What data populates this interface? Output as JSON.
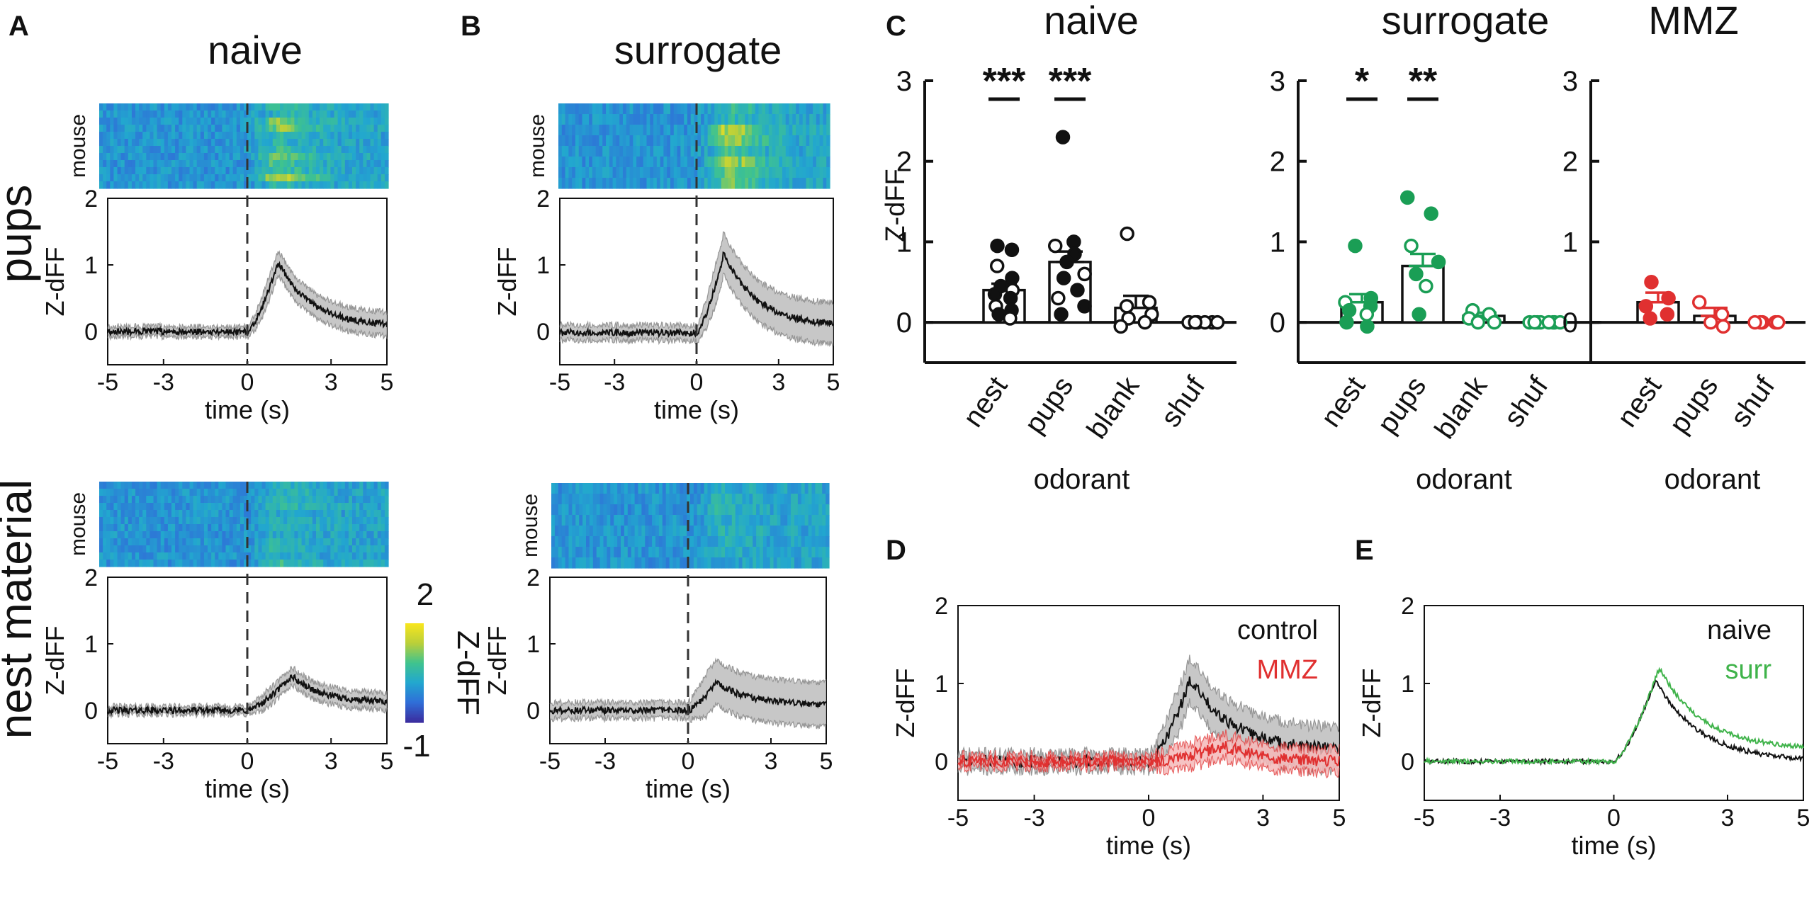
{
  "panel_labels": [
    "A",
    "B",
    "C",
    "D",
    "E"
  ],
  "row_labels": [
    "pups",
    "nest material"
  ],
  "heatmap_ylabel": "mouse",
  "colorbar": {
    "label": "Z-dFF",
    "max_label": "2",
    "min_label": "-1",
    "colors": [
      "#3b2ea0",
      "#2f6fd8",
      "#22a7cf",
      "#3fc38e",
      "#b9cf3a",
      "#f7e51e"
    ]
  },
  "colors": {
    "naive": "#111111",
    "surrogate": "#1a9e55",
    "mmz": "#e03030",
    "surr_line": "#3fb34a",
    "shade_gray": "#bdbdbd",
    "shade_red": "#f4b8b8"
  },
  "chart_data": [
    {
      "panel": "A",
      "type": "line",
      "title": "naive",
      "row": "pups",
      "xlabel": "time (s)",
      "ylabel": "Z-dFF",
      "xlim": [
        -5,
        5
      ],
      "ylim": [
        -0.5,
        2
      ],
      "xticks": [
        "-5",
        "-3",
        "0",
        "3",
        "5"
      ],
      "yticks": [
        "0",
        "1",
        "2"
      ],
      "peak": 1.05,
      "peak_time": 1.1,
      "baseline": 0.0,
      "end_value": 0.08,
      "sem": 0.15,
      "heatmap_rows": 12
    },
    {
      "panel": "B",
      "type": "line",
      "title": "surrogate",
      "row": "pups",
      "xlabel": "time (s)",
      "ylabel": "Z-dFF",
      "xlim": [
        -5,
        5
      ],
      "ylim": [
        -0.5,
        2
      ],
      "xticks": [
        "-5",
        "-3",
        "0",
        "3",
        "5"
      ],
      "yticks": [
        "0",
        "1",
        "2"
      ],
      "peak": 1.2,
      "peak_time": 1.0,
      "baseline": -0.02,
      "end_value": 0.1,
      "sem": 0.28,
      "heatmap_rows": 8
    },
    {
      "panel": "A",
      "type": "line",
      "title": "",
      "row": "nest material",
      "xlabel": "time (s)",
      "ylabel": "Z-dFF",
      "xlim": [
        -5,
        5
      ],
      "ylim": [
        -0.5,
        2
      ],
      "xticks": [
        "-5",
        "-3",
        "0",
        "3",
        "5"
      ],
      "yticks": [
        "0",
        "1",
        "2"
      ],
      "peak": 0.52,
      "peak_time": 1.6,
      "baseline": 0.0,
      "end_value": 0.12,
      "sem": 0.1,
      "heatmap_rows": 12
    },
    {
      "panel": "B",
      "type": "line",
      "title": "",
      "row": "nest material",
      "xlabel": "time (s)",
      "ylabel": "Z-dFF",
      "xlim": [
        -5,
        5
      ],
      "ylim": [
        -0.5,
        2
      ],
      "xticks": [
        "-5",
        "-3",
        "0",
        "3",
        "5"
      ],
      "yticks": [
        "0",
        "1",
        "2"
      ],
      "peak": 0.42,
      "peak_time": 1.0,
      "baseline": 0.0,
      "end_value": 0.08,
      "sem": 0.3,
      "heatmap_rows": 8
    },
    {
      "panel": "C",
      "type": "bar",
      "title": "naive",
      "xlabel": "odorant",
      "ylabel": "Z-dFF",
      "ylim": [
        -0.5,
        3
      ],
      "yticks": [
        "0",
        "1",
        "2",
        "3"
      ],
      "color_key": "naive",
      "categories": [
        "nest",
        "pups",
        "blank",
        "shuf"
      ],
      "values": [
        0.4,
        0.75,
        0.18,
        0.0
      ],
      "sem": [
        0.08,
        0.13,
        0.15,
        0.01
      ],
      "open_markers": [
        false,
        false,
        true,
        true
      ],
      "points": [
        [
          0.95,
          0.9,
          0.7,
          0.55,
          0.45,
          0.4,
          0.35,
          0.3,
          0.2,
          0.15,
          0.1,
          0.05
        ],
        [
          2.3,
          1.0,
          0.95,
          0.85,
          0.75,
          0.6,
          0.55,
          0.4,
          0.3,
          0.2,
          0.1
        ],
        [
          1.1,
          0.25,
          0.2,
          0.1,
          0.05,
          0.0,
          -0.05
        ],
        [
          0,
          0,
          0,
          0,
          0,
          0,
          0
        ]
      ],
      "significance": [
        {
          "label": "***",
          "index": 0
        },
        {
          "label": "***",
          "index": 1
        }
      ]
    },
    {
      "panel": "C",
      "type": "bar",
      "title": "surrogate",
      "xlabel": "odorant",
      "ylabel": "",
      "ylim": [
        -0.5,
        3
      ],
      "yticks": [
        "0",
        "1",
        "2",
        "3"
      ],
      "color_key": "surrogate",
      "categories": [
        "nest",
        "pups",
        "blank",
        "shuf"
      ],
      "values": [
        0.25,
        0.7,
        0.08,
        0.0
      ],
      "sem": [
        0.1,
        0.15,
        0.04,
        0.01
      ],
      "open_markers": [
        false,
        false,
        true,
        true
      ],
      "points": [
        [
          0.95,
          0.3,
          0.25,
          0.2,
          0.15,
          0.1,
          0.0,
          -0.05
        ],
        [
          1.55,
          1.35,
          0.95,
          0.75,
          0.6,
          0.45,
          0.1
        ],
        [
          0.15,
          0.1,
          0.05,
          0.0,
          0.0
        ],
        [
          0,
          0,
          0,
          0,
          0,
          0,
          0,
          0
        ]
      ],
      "significance": [
        {
          "label": "*",
          "index": 0
        },
        {
          "label": "**",
          "index": 1
        }
      ]
    },
    {
      "panel": "C",
      "type": "bar",
      "title": "MMZ",
      "xlabel": "odorant",
      "ylabel": "",
      "ylim": [
        -0.5,
        3
      ],
      "yticks": [
        "0",
        "1",
        "2",
        "3"
      ],
      "color_key": "mmz",
      "categories": [
        "nest",
        "pups",
        "shuf"
      ],
      "values": [
        0.25,
        0.08,
        0.0
      ],
      "sem": [
        0.12,
        0.1,
        0.01
      ],
      "open_markers": [
        false,
        true,
        true
      ],
      "points": [
        [
          0.5,
          0.3,
          0.2,
          0.1,
          0.05
        ],
        [
          0.25,
          0.1,
          0.0,
          -0.05
        ],
        [
          0,
          0,
          0,
          0,
          0
        ]
      ],
      "significance": []
    },
    {
      "panel": "D",
      "type": "line",
      "xlabel": "time (s)",
      "ylabel": "Z-dFF",
      "xlim": [
        -5,
        5
      ],
      "ylim": [
        -0.5,
        2
      ],
      "xticks": [
        "-5",
        "-3",
        "0",
        "3",
        "5"
      ],
      "yticks": [
        "0",
        "1",
        "2"
      ],
      "series": [
        {
          "name": "control",
          "color_key": "naive",
          "peak": 1.05,
          "peak_time": 1.1,
          "end_value": 0.12,
          "sem": 0.25
        },
        {
          "name": "MMZ",
          "color_key": "mmz",
          "peak": 0.2,
          "peak_time": 2.0,
          "end_value": 0.0,
          "sem": 0.12
        }
      ]
    },
    {
      "panel": "E",
      "type": "line",
      "xlabel": "time (s)",
      "ylabel": "Z-dFF",
      "xlim": [
        -5,
        5
      ],
      "ylim": [
        -0.5,
        2
      ],
      "xticks": [
        "-5",
        "-3",
        "0",
        "3",
        "5"
      ],
      "yticks": [
        "0",
        "1",
        "2"
      ],
      "series": [
        {
          "name": "naive",
          "color_key": "naive",
          "peak": 1.05,
          "peak_time": 1.1,
          "end_value": 0.0
        },
        {
          "name": "surr",
          "color_key": "surr_line",
          "peak": 1.2,
          "peak_time": 1.2,
          "end_value": 0.15
        }
      ]
    }
  ]
}
